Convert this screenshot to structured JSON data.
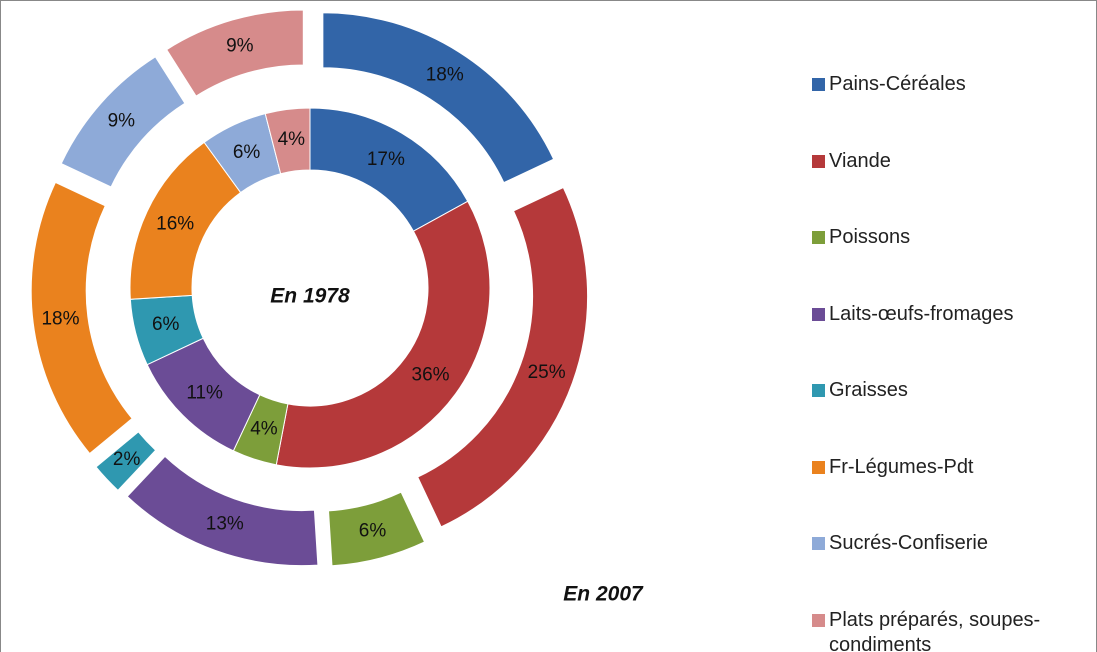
{
  "chart_data": {
    "type": "doughnut",
    "categories": [
      "Pains-Céréales",
      "Viande",
      "Poissons",
      "Laits-œufs-fromages",
      "Graisses",
      "Fr-Légumes-Pdt",
      "Sucrés-Confiserie",
      "Plats préparés, soupes-condiments"
    ],
    "colors": [
      "#3265a8",
      "#b5393a",
      "#7d9e3a",
      "#6b4c96",
      "#2f98b0",
      "#ea821e",
      "#8eaad8",
      "#d68b8b"
    ],
    "series": [
      {
        "name": "En 1978",
        "values": [
          17,
          36,
          4,
          11,
          6,
          16,
          6,
          4
        ],
        "value_labels": [
          "17%",
          "36%",
          "4%",
          "11%",
          "6%",
          "16%",
          "6%",
          "4%"
        ]
      },
      {
        "name": "En 2007",
        "values": [
          18,
          25,
          6,
          13,
          2,
          18,
          9,
          9
        ],
        "value_labels": [
          "18%",
          "25%",
          "6%",
          "13%",
          "2%",
          "18%",
          "9%",
          "9%"
        ]
      }
    ]
  }
}
